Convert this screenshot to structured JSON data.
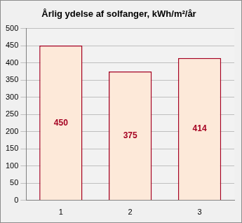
{
  "chart_data": {
    "type": "bar",
    "title": "Årlig ydelse af solfanger, kWh/m²/år",
    "categories": [
      "1",
      "2",
      "3"
    ],
    "values": [
      450,
      375,
      414
    ],
    "color": "#fde9d9",
    "ylim": [
      0,
      500
    ],
    "yticks": [
      0,
      50,
      100,
      150,
      200,
      250,
      300,
      350,
      400,
      450,
      500
    ],
    "grid": true,
    "data_labels": true
  }
}
